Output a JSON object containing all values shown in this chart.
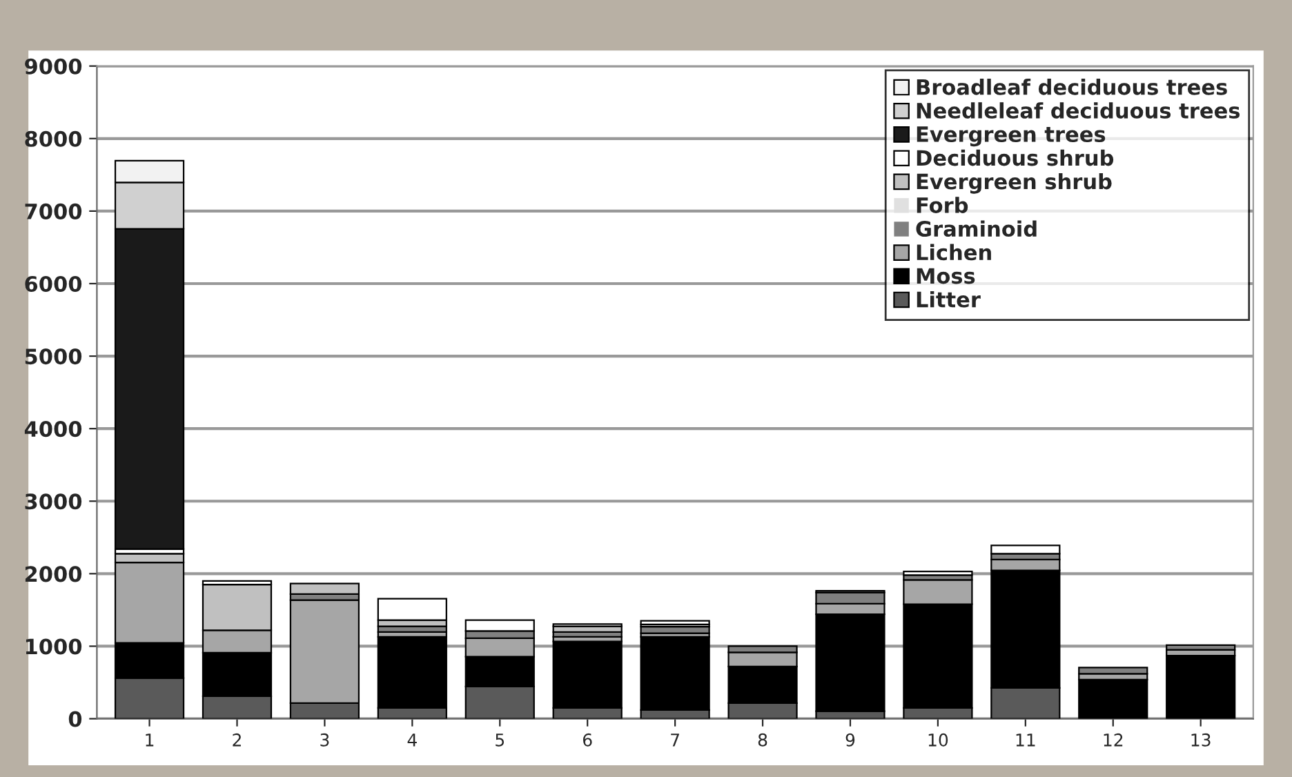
{
  "chart_data": {
    "type": "bar",
    "stacked": true,
    "categories": [
      "1",
      "2",
      "3",
      "4",
      "5",
      "6",
      "7",
      "8",
      "9",
      "10",
      "11",
      "12",
      "13"
    ],
    "series": [
      {
        "name": "Litter",
        "color": "#5a5a5a",
        "values": [
          560,
          310,
          215,
          150,
          445,
          150,
          120,
          215,
          105,
          150,
          425,
          0,
          0
        ]
      },
      {
        "name": "Moss",
        "color": "#000000",
        "values": [
          485,
          600,
          0,
          980,
          410,
          915,
          1010,
          505,
          1335,
          1430,
          1620,
          540,
          870
        ]
      },
      {
        "name": "Lichen",
        "color": "#a6a6a6",
        "values": [
          1110,
          310,
          1420,
          65,
          255,
          65,
          50,
          195,
          145,
          335,
          150,
          80,
          80
        ]
      },
      {
        "name": "Graminoid",
        "color": "#808080",
        "values": [
          0,
          0,
          85,
          80,
          100,
          65,
          90,
          85,
          155,
          65,
          80,
          85,
          65
        ]
      },
      {
        "name": "Forb",
        "color": "#e0e0e0",
        "values": [
          0,
          0,
          0,
          0,
          0,
          0,
          0,
          0,
          0,
          0,
          0,
          0,
          0
        ]
      },
      {
        "name": "Evergreen shrub",
        "color": "#c0c0c0",
        "values": [
          120,
          630,
          145,
          85,
          0,
          80,
          30,
          0,
          25,
          0,
          0,
          0,
          0
        ]
      },
      {
        "name": "Deciduous shrub",
        "color": "#ffffff",
        "values": [
          65,
          50,
          0,
          295,
          150,
          30,
          50,
          0,
          0,
          50,
          115,
          0,
          0
        ]
      },
      {
        "name": "Evergreen trees",
        "color": "#1a1a1a",
        "values": [
          4415,
          0,
          0,
          0,
          0,
          0,
          0,
          0,
          0,
          0,
          0,
          0,
          0
        ]
      },
      {
        "name": "Needleleaf deciduous trees",
        "color": "#d0d0d0",
        "values": [
          640,
          0,
          0,
          0,
          0,
          0,
          0,
          0,
          0,
          0,
          0,
          0,
          0
        ]
      },
      {
        "name": "Broadleaf deciduous trees",
        "color": "#f2f2f2",
        "values": [
          300,
          0,
          0,
          0,
          0,
          0,
          0,
          0,
          0,
          0,
          0,
          0,
          0
        ]
      }
    ],
    "ylim": [
      0,
      9000
    ],
    "yticks": [
      0,
      1000,
      2000,
      3000,
      4000,
      5000,
      6000,
      7000,
      8000,
      9000
    ],
    "grid": "y",
    "legend": "top right"
  }
}
